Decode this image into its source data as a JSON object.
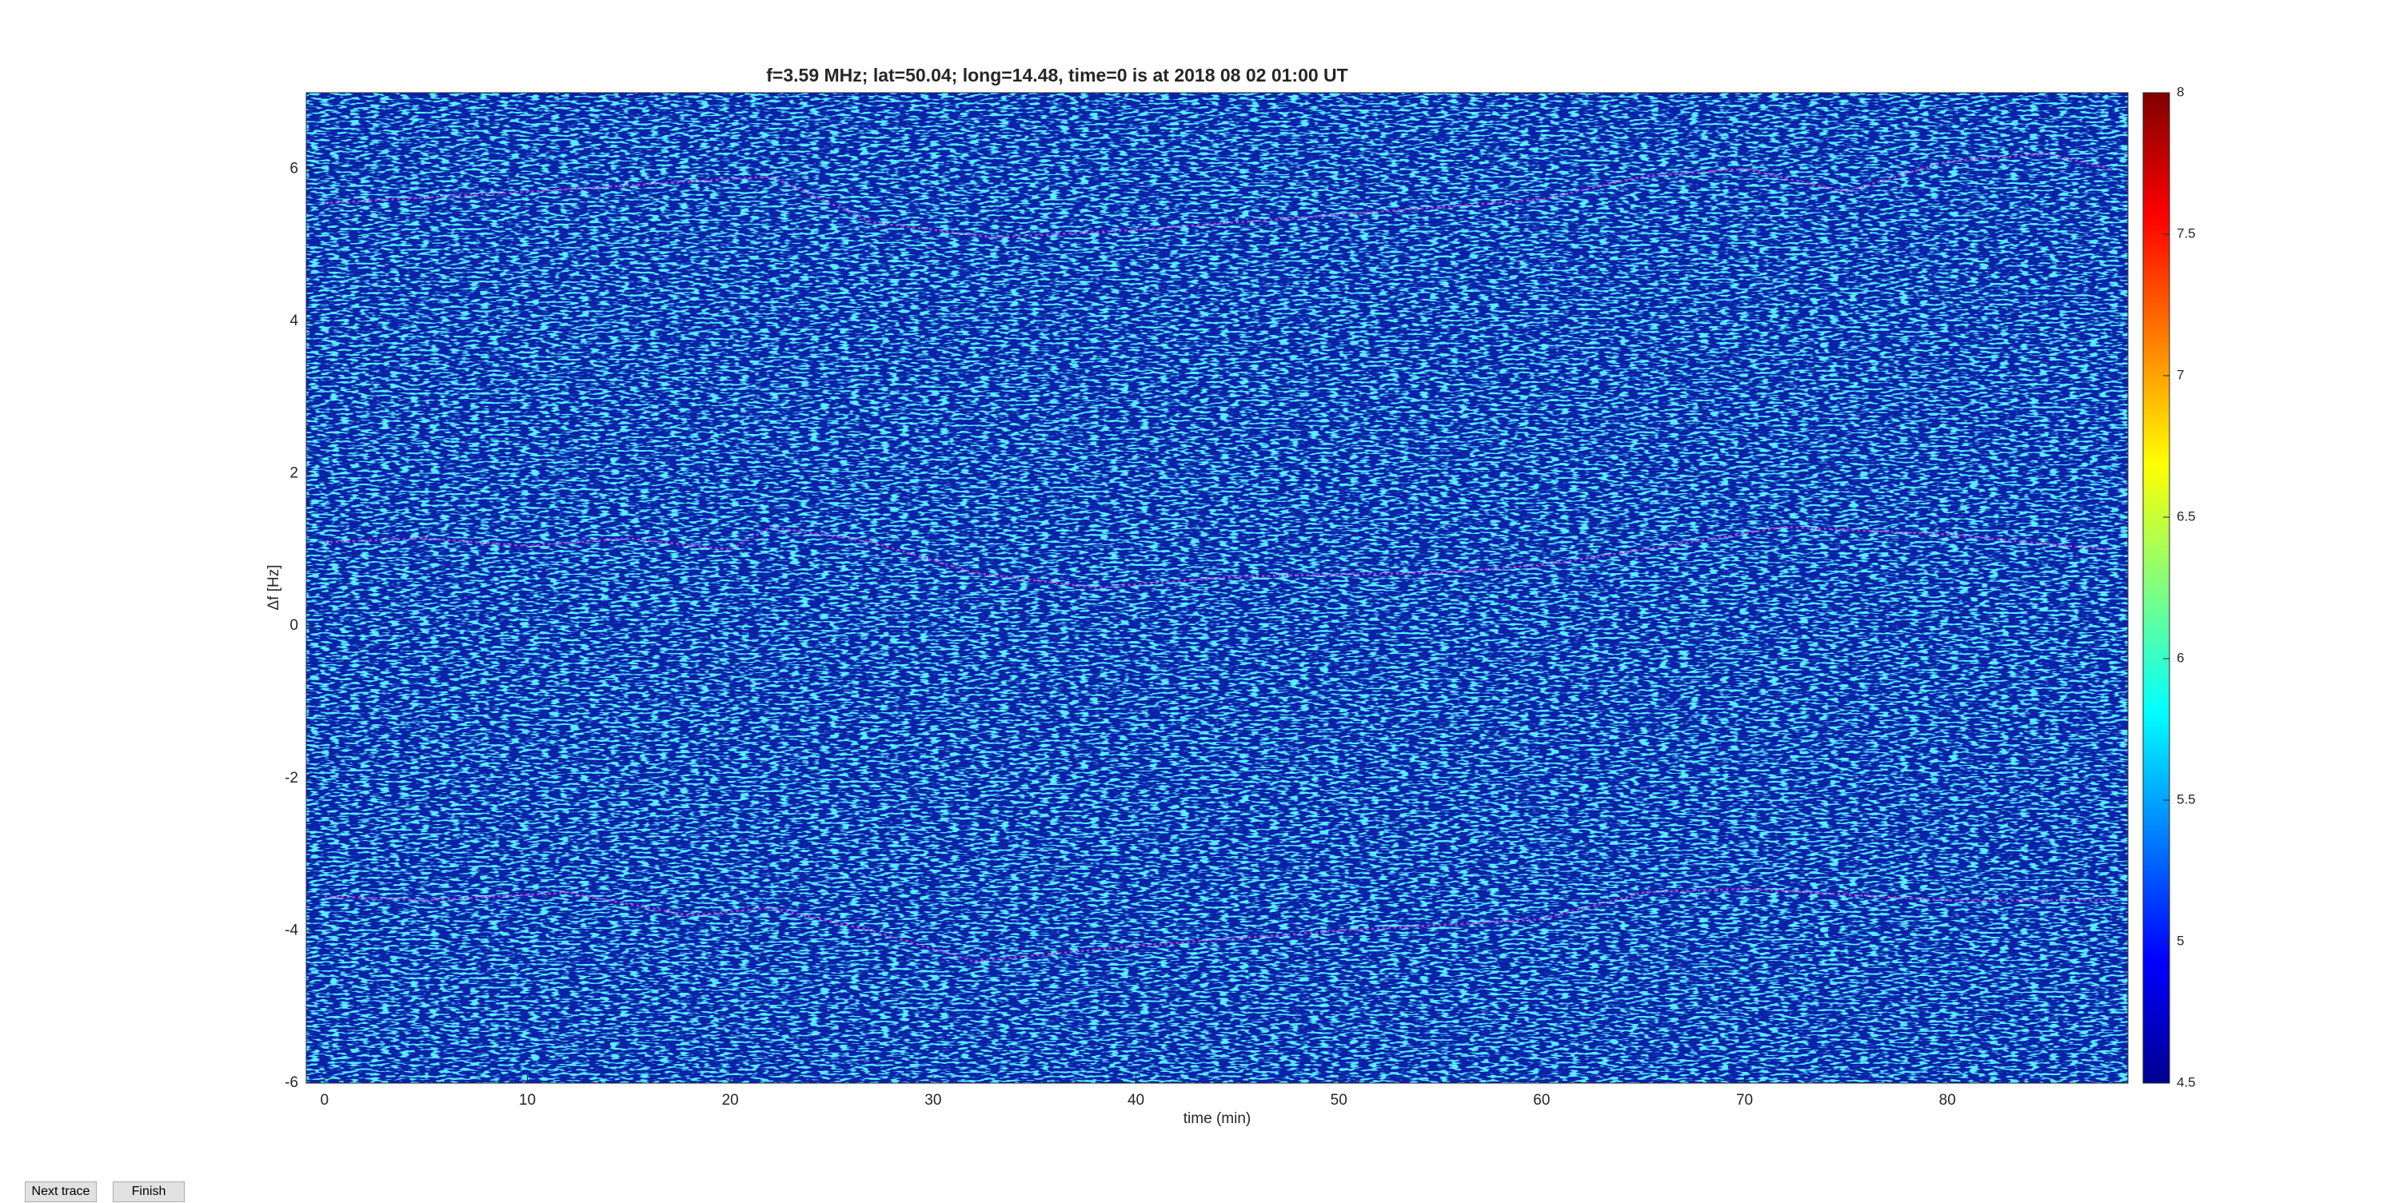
{
  "chart_data": {
    "type": "line",
    "title": "f=3.59 MHz;  lat=50.04; long=14.48, time=0 is at 2018 08 02 01:00 UT",
    "x_label": "time (min)",
    "y_label": "Δf [Hz]",
    "xlim": [
      -0.9,
      88.9
    ],
    "xticks": [
      0,
      10,
      20,
      30,
      40,
      50,
      60,
      70,
      80
    ],
    "ylim": [
      -6,
      7
    ],
    "yticks": [
      -6,
      -4,
      -2,
      0,
      2,
      4,
      6
    ],
    "clim": [
      4.5,
      8
    ],
    "cticks": [
      4.5,
      5,
      5.5,
      6,
      6.5,
      7,
      7.5,
      8
    ],
    "series": [
      {
        "color": "#d030e0",
        "x": [
          0,
          10,
          22,
          27,
          33,
          40,
          50,
          60,
          65,
          70,
          75,
          80,
          85,
          88
        ],
        "values": [
          5.55,
          5.7,
          5.9,
          5.3,
          5.1,
          5.2,
          5.4,
          5.6,
          5.9,
          6.0,
          5.7,
          6.1,
          6.2,
          6.0
        ]
      },
      {
        "color": "#d030e0",
        "x": [
          0,
          5,
          10,
          15,
          20,
          22,
          27,
          32,
          38,
          45,
          55,
          60,
          65,
          72,
          80,
          88
        ],
        "values": [
          1.1,
          1.15,
          1.05,
          1.15,
          1.0,
          1.3,
          1.1,
          0.7,
          0.5,
          0.65,
          0.7,
          0.8,
          1.0,
          1.3,
          1.2,
          1.0
        ]
      },
      {
        "color": "#d030e0",
        "x": [
          0,
          5,
          12,
          18,
          22,
          27,
          32,
          40,
          50,
          60,
          65,
          70,
          80,
          88
        ],
        "values": [
          -3.55,
          -3.6,
          -3.5,
          -3.8,
          -3.7,
          -4.0,
          -4.4,
          -4.2,
          -4.0,
          -3.85,
          -3.5,
          -3.45,
          -3.6,
          -3.6
        ]
      }
    ]
  },
  "buttons": [
    "Next trace",
    "Finish"
  ]
}
